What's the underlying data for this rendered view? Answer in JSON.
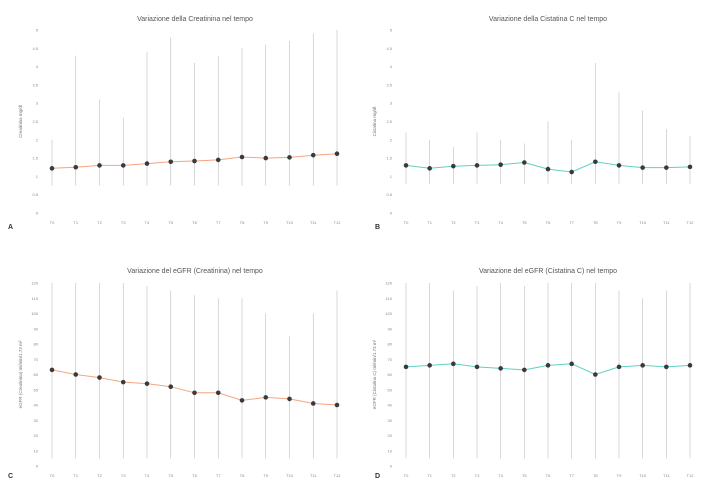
{
  "chart_data": [
    {
      "type": "line",
      "panel_label": "A",
      "title": "Variazione della Creatinina nel tempo",
      "ylabel": "Creatinina mg/dl",
      "xlabel": "",
      "categories": [
        "T0",
        "T1",
        "T2",
        "T3",
        "T4",
        "T5",
        "T6",
        "T7",
        "T8",
        "T9",
        "T10",
        "T11",
        "T12"
      ],
      "ylim": [
        0,
        5
      ],
      "yticks": [
        "0",
        "0.5",
        "1",
        "1.5",
        "2",
        "2.5",
        "3",
        "3.5",
        "4",
        "4.5",
        "5"
      ],
      "line_color": "#f4a582",
      "series": [
        {
          "values": [
            1.22,
            1.25,
            1.3,
            1.3,
            1.35,
            1.4,
            1.42,
            1.45,
            1.53,
            1.5,
            1.52,
            1.58,
            1.62
          ],
          "err_low": [
            0.75,
            0.75,
            0.75,
            0.75,
            0.75,
            0.75,
            0.75,
            0.75,
            0.75,
            0.75,
            0.75,
            0.75,
            0.75
          ],
          "err_high": [
            2.0,
            4.3,
            3.1,
            2.6,
            4.4,
            4.8,
            4.1,
            4.3,
            4.5,
            4.6,
            4.7,
            4.9,
            5.0
          ]
        }
      ],
      "grid": false
    },
    {
      "type": "line",
      "panel_label": "B",
      "title": "Variazione della Cistatina C nel tempo",
      "ylabel": "Cistatina mg/dl",
      "xlabel": "",
      "categories": [
        "T0",
        "T1",
        "T2",
        "T3",
        "T4",
        "T5",
        "T6",
        "T7",
        "T8",
        "T9",
        "T10",
        "T11",
        "T12"
      ],
      "ylim": [
        0,
        5
      ],
      "yticks": [
        "0",
        "0.5",
        "1",
        "1.5",
        "2",
        "2.5",
        "3",
        "3.5",
        "4",
        "4.5",
        "5"
      ],
      "line_color": "#5fd0c4",
      "series": [
        {
          "values": [
            1.3,
            1.22,
            1.28,
            1.3,
            1.32,
            1.38,
            1.2,
            1.12,
            1.4,
            1.3,
            1.24,
            1.24,
            1.26
          ],
          "err_low": [
            0.8,
            0.8,
            0.8,
            0.8,
            0.8,
            0.8,
            0.8,
            0.8,
            0.8,
            0.8,
            0.8,
            0.8,
            0.8
          ],
          "err_high": [
            2.2,
            2.0,
            1.8,
            2.2,
            2.0,
            1.9,
            2.5,
            2.0,
            4.1,
            3.3,
            2.8,
            2.3,
            2.1
          ]
        }
      ],
      "grid": false
    },
    {
      "type": "line",
      "panel_label": "C",
      "title": "Variazione del eGFR (Creatinina) nel tempo",
      "ylabel": "eGFR (Creatinina) ml/min/1.73 m²",
      "xlabel": "",
      "categories": [
        "T0",
        "T1",
        "T2",
        "T3",
        "T4",
        "T5",
        "T6",
        "T7",
        "T8",
        "T9",
        "T10",
        "T11",
        "T12"
      ],
      "ylim": [
        0,
        120
      ],
      "yticks": [
        "0",
        "10",
        "20",
        "30",
        "40",
        "50",
        "60",
        "70",
        "80",
        "90",
        "100",
        "110",
        "120"
      ],
      "line_color": "#f4a582",
      "series": [
        {
          "values": [
            63,
            60,
            58,
            55,
            54,
            52,
            48,
            48,
            43,
            45,
            44,
            41,
            40
          ],
          "err_low": [
            5,
            5,
            5,
            5,
            5,
            5,
            5,
            5,
            5,
            5,
            5,
            5,
            5
          ],
          "err_high": [
            120,
            120,
            120,
            120,
            118,
            115,
            112,
            110,
            110,
            100,
            85,
            100,
            115
          ]
        }
      ],
      "grid": false
    },
    {
      "type": "line",
      "panel_label": "D",
      "title": "Variazione del eGFR (Cistatina C) nel tempo",
      "ylabel": "eGFR (Cistatina C) ml/min/1.73 m²",
      "xlabel": "",
      "categories": [
        "T0",
        "T1",
        "T2",
        "T3",
        "T4",
        "T5",
        "T6",
        "T7",
        "T8",
        "T9",
        "T10",
        "T11",
        "T12"
      ],
      "ylim": [
        0,
        120
      ],
      "yticks": [
        "0",
        "10",
        "20",
        "30",
        "40",
        "50",
        "60",
        "70",
        "80",
        "90",
        "100",
        "110",
        "120"
      ],
      "line_color": "#5fd0c4",
      "series": [
        {
          "values": [
            65,
            66,
            67,
            65,
            64,
            63,
            66,
            67,
            60,
            65,
            66,
            65,
            66
          ],
          "err_low": [
            5,
            5,
            5,
            5,
            5,
            5,
            5,
            5,
            5,
            5,
            5,
            5,
            5
          ],
          "err_high": [
            120,
            120,
            115,
            118,
            120,
            118,
            120,
            120,
            120,
            115,
            110,
            115,
            120
          ]
        }
      ],
      "grid": false
    }
  ]
}
